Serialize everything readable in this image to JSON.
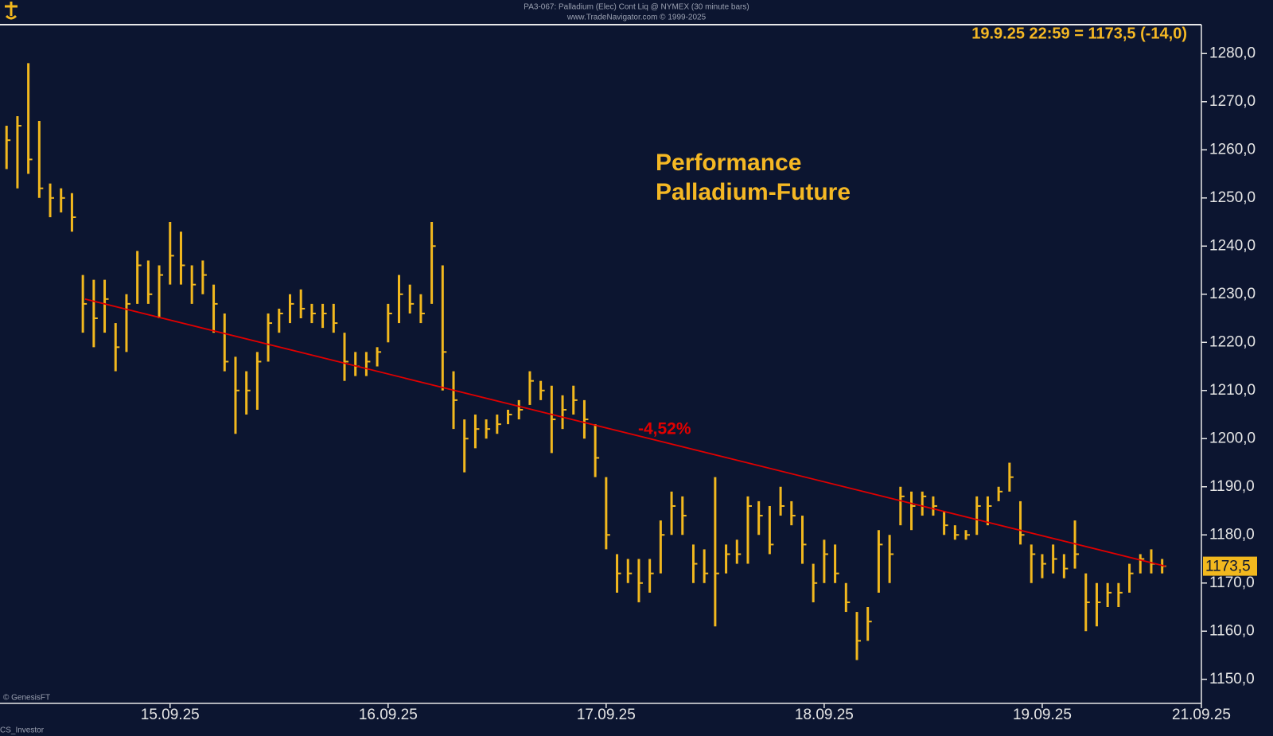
{
  "chart_data": {
    "type": "ohlc",
    "header": "PA3-067:  Palladium (Elec) Cont Liq @ NYMEX  (30 minute bars)",
    "subheader": "www.TradeNavigator.com © 1999-2025",
    "info": "19.9.25 22:59 = 1173,5 (-14,0)",
    "title_lines": [
      "Performance",
      "Palladium-Future"
    ],
    "trend_label": "-4,52%",
    "last_label": "1173,5",
    "last_value": 1173.5,
    "credit": "© GenesisFT",
    "footer": "CS_Investor",
    "color": "#f2b81e",
    "trend_color": "#e00000",
    "trendline": {
      "x": [
        14.61,
        19.565
      ],
      "y": [
        1229,
        1173.5
      ]
    },
    "xlim": [
      14.22,
      19.73
    ],
    "ylim": [
      1145,
      1286
    ],
    "xticks": [
      {
        "value": 15,
        "label": "15.09.25"
      },
      {
        "value": 16,
        "label": "16.09.25"
      },
      {
        "value": 17,
        "label": "17.09.25"
      },
      {
        "value": 18,
        "label": "18.09.25"
      },
      {
        "value": 19,
        "label": "19.09.25"
      },
      {
        "value": 19.73,
        "label": "21.09.25"
      }
    ],
    "yticks": [
      {
        "value": 1150,
        "label": "1150,0"
      },
      {
        "value": 1160,
        "label": "1160,0"
      },
      {
        "value": 1170,
        "label": "1170,0"
      },
      {
        "value": 1180,
        "label": "1180,0"
      },
      {
        "value": 1190,
        "label": "1190,0"
      },
      {
        "value": 1200,
        "label": "1200,0"
      },
      {
        "value": 1210,
        "label": "1210,0"
      },
      {
        "value": 1220,
        "label": "1220,0"
      },
      {
        "value": 1230,
        "label": "1230,0"
      },
      {
        "value": 1240,
        "label": "1240,0"
      },
      {
        "value": 1250,
        "label": "1250,0"
      },
      {
        "value": 1260,
        "label": "1260,0"
      },
      {
        "value": 1270,
        "label": "1270,0"
      },
      {
        "value": 1280,
        "label": "1280,0"
      }
    ],
    "x": [
      14.25,
      14.3,
      14.35,
      14.4,
      14.45,
      14.5,
      14.55,
      14.6,
      14.65,
      14.7,
      14.75,
      14.8,
      14.85,
      14.9,
      14.95,
      15.0,
      15.05,
      15.1,
      15.15,
      15.2,
      15.25,
      15.3,
      15.35,
      15.4,
      15.45,
      15.5,
      15.55,
      15.6,
      15.65,
      15.7,
      15.75,
      15.8,
      15.85,
      15.9,
      15.95,
      16.0,
      16.05,
      16.1,
      16.15,
      16.2,
      16.25,
      16.3,
      16.35,
      16.4,
      16.45,
      16.5,
      16.55,
      16.6,
      16.65,
      16.7,
      16.75,
      16.8,
      16.85,
      16.9,
      16.95,
      17.0,
      17.05,
      17.1,
      17.15,
      17.2,
      17.25,
      17.3,
      17.35,
      17.4,
      17.45,
      17.5,
      17.55,
      17.6,
      17.65,
      17.7,
      17.75,
      17.8,
      17.85,
      17.9,
      17.95,
      18.0,
      18.05,
      18.1,
      18.15,
      18.2,
      18.25,
      18.3,
      18.35,
      18.4,
      18.45,
      18.5,
      18.55,
      18.6,
      18.65,
      18.7,
      18.75,
      18.8,
      18.85,
      18.9,
      18.95,
      19.0,
      19.05,
      19.1,
      19.15,
      19.2,
      19.25,
      19.3,
      19.35,
      19.4,
      19.45,
      19.5,
      19.55
    ],
    "high": [
      1265,
      1267,
      1278,
      1266,
      1253,
      1252,
      1251,
      1234,
      1233,
      1233,
      1224,
      1230,
      1239,
      1237,
      1236,
      1245,
      1243,
      1236,
      1237,
      1232,
      1226,
      1217,
      1214,
      1218,
      1226,
      1227,
      1230,
      1231,
      1228,
      1228,
      1228,
      1222,
      1218,
      1218,
      1219,
      1228,
      1234,
      1232,
      1230,
      1245,
      1236,
      1214,
      1204,
      1205,
      1204,
      1205,
      1206,
      1208,
      1214,
      1212,
      1211,
      1209,
      1211,
      1208,
      1203,
      1192,
      1176,
      1175,
      1175,
      1175,
      1183,
      1189,
      1188,
      1178,
      1177,
      1192,
      1178,
      1179,
      1188,
      1187,
      1186,
      1190,
      1187,
      1184,
      1174,
      1179,
      1178,
      1170,
      1164,
      1165,
      1181,
      1180,
      1190,
      1189,
      1189,
      1188,
      1185,
      1182,
      1181,
      1188,
      1188,
      1190,
      1195,
      1187,
      1178,
      1176,
      1178,
      1176,
      1183,
      1172,
      1170,
      1170,
      1170,
      1174,
      1176,
      1177,
      1175
    ],
    "low": [
      1256,
      1252,
      1255,
      1250,
      1246,
      1247,
      1243,
      1222,
      1219,
      1222,
      1214,
      1218,
      1228,
      1228,
      1225,
      1232,
      1232,
      1228,
      1230,
      1222,
      1214,
      1201,
      1205,
      1206,
      1216,
      1222,
      1224,
      1225,
      1224,
      1223,
      1222,
      1212,
      1213,
      1213,
      1215,
      1220,
      1224,
      1226,
      1224,
      1228,
      1210,
      1202,
      1193,
      1198,
      1200,
      1201,
      1203,
      1204,
      1207,
      1208,
      1197,
      1202,
      1205,
      1200,
      1192,
      1177,
      1168,
      1170,
      1166,
      1168,
      1172,
      1180,
      1180,
      1170,
      1170,
      1161,
      1172,
      1174,
      1174,
      1180,
      1176,
      1184,
      1182,
      1174,
      1166,
      1170,
      1170,
      1164,
      1154,
      1158,
      1168,
      1170,
      1182,
      1181,
      1184,
      1184,
      1180,
      1179,
      1179,
      1180,
      1182,
      1187,
      1189,
      1178,
      1170,
      1171,
      1172,
      1171,
      1173,
      1160,
      1161,
      1165,
      1165,
      1168,
      1172,
      1172,
      1172
    ],
    "close": [
      1262,
      1265,
      1258,
      1252,
      1250,
      1250,
      1246,
      1228,
      1225,
      1229,
      1219,
      1228,
      1236,
      1230,
      1234,
      1238,
      1236,
      1232,
      1234,
      1228,
      1216,
      1210,
      1210,
      1216,
      1224,
      1226,
      1228,
      1227,
      1226,
      1226,
      1224,
      1216,
      1215,
      1216,
      1218,
      1226,
      1230,
      1228,
      1226,
      1240,
      1218,
      1208,
      1200,
      1202,
      1202,
      1203,
      1205,
      1206,
      1212,
      1210,
      1204,
      1206,
      1208,
      1204,
      1196,
      1180,
      1172,
      1172,
      1170,
      1172,
      1180,
      1186,
      1184,
      1174,
      1172,
      1172,
      1176,
      1176,
      1186,
      1184,
      1178,
      1186,
      1184,
      1178,
      1170,
      1176,
      1172,
      1166,
      1158,
      1162,
      1178,
      1176,
      1188,
      1186,
      1188,
      1186,
      1182,
      1180,
      1180,
      1186,
      1186,
      1189,
      1192,
      1180,
      1176,
      1174,
      1175,
      1173,
      1176,
      1166,
      1166,
      1168,
      1168,
      1172,
      1175,
      1174,
      1173.5
    ]
  }
}
